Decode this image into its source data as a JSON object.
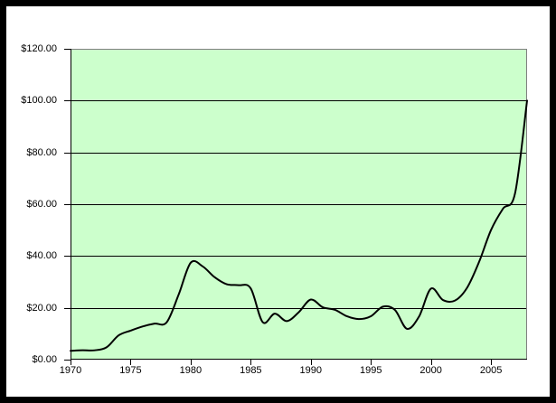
{
  "chart_data": {
    "type": "line",
    "title": "",
    "x": [
      1970,
      1971,
      1972,
      1973,
      1974,
      1975,
      1976,
      1977,
      1978,
      1979,
      1980,
      1981,
      1982,
      1983,
      1984,
      1985,
      1986,
      1987,
      1988,
      1989,
      1990,
      1991,
      1992,
      1993,
      1994,
      1995,
      1996,
      1997,
      1998,
      1999,
      2000,
      2001,
      2002,
      2003,
      2004,
      2005,
      2006,
      2007,
      2008
    ],
    "values": [
      3.4,
      3.6,
      3.6,
      4.75,
      9.35,
      11.2,
      12.8,
      13.9,
      14.4,
      25.1,
      37.4,
      36.0,
      31.8,
      29.1,
      28.75,
      27.5,
      14.44,
      17.75,
      14.87,
      18.33,
      23.19,
      20.2,
      19.25,
      16.75,
      15.66,
      16.75,
      20.46,
      19.2,
      11.91,
      16.56,
      27.39,
      23.0,
      22.81,
      27.69,
      37.66,
      50.04,
      58.3,
      64.2,
      100.0
    ],
    "xlabel": "",
    "ylabel": "",
    "xlim": [
      1970,
      2008
    ],
    "ylim": [
      0,
      120
    ],
    "grid": true,
    "legend": "none",
    "smooth": true,
    "x_ticks": [
      {
        "value": 1970,
        "label": "1970"
      },
      {
        "value": 1975,
        "label": "1975"
      },
      {
        "value": 1980,
        "label": "1980"
      },
      {
        "value": 1985,
        "label": "1985"
      },
      {
        "value": 1990,
        "label": "1990"
      },
      {
        "value": 1995,
        "label": "1995"
      },
      {
        "value": 2000,
        "label": "2000"
      },
      {
        "value": 2005,
        "label": "2005"
      }
    ],
    "y_ticks": [
      {
        "value": 0,
        "label": "$0.00"
      },
      {
        "value": 20,
        "label": "$20.00"
      },
      {
        "value": 40,
        "label": "$40.00"
      },
      {
        "value": 60,
        "label": "$60.00"
      },
      {
        "value": 80,
        "label": "$80.00"
      },
      {
        "value": 100,
        "label": "$100.00"
      },
      {
        "value": 120,
        "label": "$120.00"
      }
    ]
  },
  "colors": {
    "page_bg": "#ffffff",
    "frame": "#000000",
    "plot_bg": "#ccffcc",
    "plot_border": "#808080",
    "grid": "#000000",
    "axis": "#000000",
    "line": "#000000"
  }
}
